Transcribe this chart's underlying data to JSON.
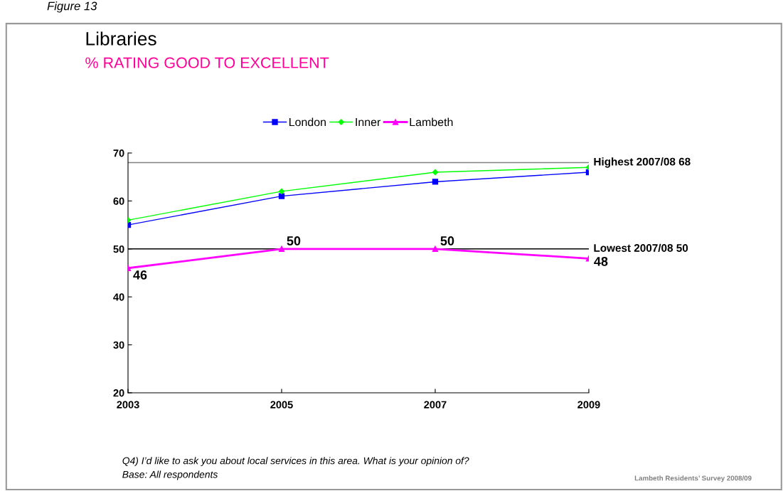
{
  "chart_data": {
    "type": "line",
    "title": "Libraries",
    "subtitle": "% RATING GOOD TO EXCELLENT",
    "categories": [
      "2003",
      "2005",
      "2007",
      "2009"
    ],
    "series": [
      {
        "name": "London",
        "color": "#0000ff",
        "marker": "square",
        "values": [
          55,
          61,
          64,
          66
        ]
      },
      {
        "name": "Inner",
        "color": "#00ff00",
        "marker": "diamond",
        "values": [
          56,
          62,
          66,
          67
        ]
      },
      {
        "name": "Lambeth",
        "color": "#ff00ff",
        "marker": "triangle",
        "values": [
          46,
          50,
          50,
          48
        ],
        "value_labels": [
          "46",
          "50",
          "50",
          "48"
        ]
      }
    ],
    "ylim": [
      20,
      70
    ],
    "yticks": [
      20,
      30,
      40,
      50,
      60,
      70
    ],
    "grid": false,
    "legend": "top",
    "ref_lines": [
      {
        "axis": "y",
        "value": 68,
        "label": "Highest 2007/08 68",
        "color": "#808080"
      },
      {
        "axis": "y",
        "value": 50,
        "label": "Lowest 2007/08 50",
        "color": "#000000"
      }
    ],
    "annotations": [
      "Figure 13",
      "Q4) I’d like to ask you about local services in this area. What is your opinion of?",
      "Base: All respondents",
      "Lambeth Residents’ Survey 2008/09"
    ]
  }
}
